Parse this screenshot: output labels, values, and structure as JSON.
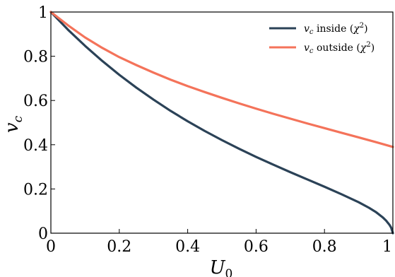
{
  "chart_data": {
    "type": "line",
    "title": "",
    "xlabel": "U_0",
    "ylabel": "v_c",
    "xlim": [
      0,
      1
    ],
    "ylim": [
      0,
      1
    ],
    "xticks": [
      0,
      0.2,
      0.4,
      0.6,
      0.8,
      1
    ],
    "xtick_labels": [
      "0",
      "0.2",
      "0.4",
      "0.6",
      "0.8",
      "1"
    ],
    "yticks": [
      0,
      0.2,
      0.4,
      0.6,
      0.8,
      1
    ],
    "ytick_labels": [
      "0",
      "0.2",
      "0.4",
      "0.6",
      "0.8",
      "1"
    ],
    "grid": false,
    "legend_position": "top-right",
    "series": [
      {
        "name": "v_c inside (χ²)",
        "color": "#2b4257",
        "x": [
          0,
          0.05,
          0.1,
          0.15,
          0.2,
          0.25,
          0.3,
          0.35,
          0.4,
          0.45,
          0.5,
          0.55,
          0.6,
          0.65,
          0.7,
          0.75,
          0.8,
          0.85,
          0.9,
          0.93,
          0.95,
          0.97,
          0.98,
          0.99,
          0.995,
          1.0
        ],
        "y": [
          1.0,
          0.92,
          0.847,
          0.779,
          0.716,
          0.658,
          0.604,
          0.553,
          0.506,
          0.462,
          0.421,
          0.382,
          0.345,
          0.31,
          0.276,
          0.243,
          0.21,
          0.176,
          0.14,
          0.115,
          0.096,
          0.072,
          0.057,
          0.038,
          0.025,
          0.0
        ]
      },
      {
        "name": "v_c outside (χ²)",
        "color": "#f4735a",
        "x": [
          0,
          0.05,
          0.1,
          0.15,
          0.2,
          0.25,
          0.3,
          0.35,
          0.4,
          0.45,
          0.5,
          0.55,
          0.6,
          0.65,
          0.7,
          0.75,
          0.8,
          0.85,
          0.9,
          0.95,
          1.0
        ],
        "y": [
          1.0,
          0.94,
          0.885,
          0.838,
          0.796,
          0.76,
          0.726,
          0.694,
          0.665,
          0.638,
          0.612,
          0.587,
          0.563,
          0.54,
          0.518,
          0.496,
          0.475,
          0.454,
          0.433,
          0.412,
          0.39
        ]
      }
    ]
  },
  "legend": {
    "items": [
      {
        "var": "v",
        "sub": "c",
        "text": " inside (",
        "chi": "χ",
        "sup": "2",
        "close": ")"
      },
      {
        "var": "v",
        "sub": "c",
        "text": " outside (",
        "chi": "χ",
        "sup": "2",
        "close": ")"
      }
    ]
  },
  "axes": {
    "xlabel_var": "U",
    "xlabel_sub": "0",
    "ylabel_var": "v",
    "ylabel_sub": "c"
  }
}
